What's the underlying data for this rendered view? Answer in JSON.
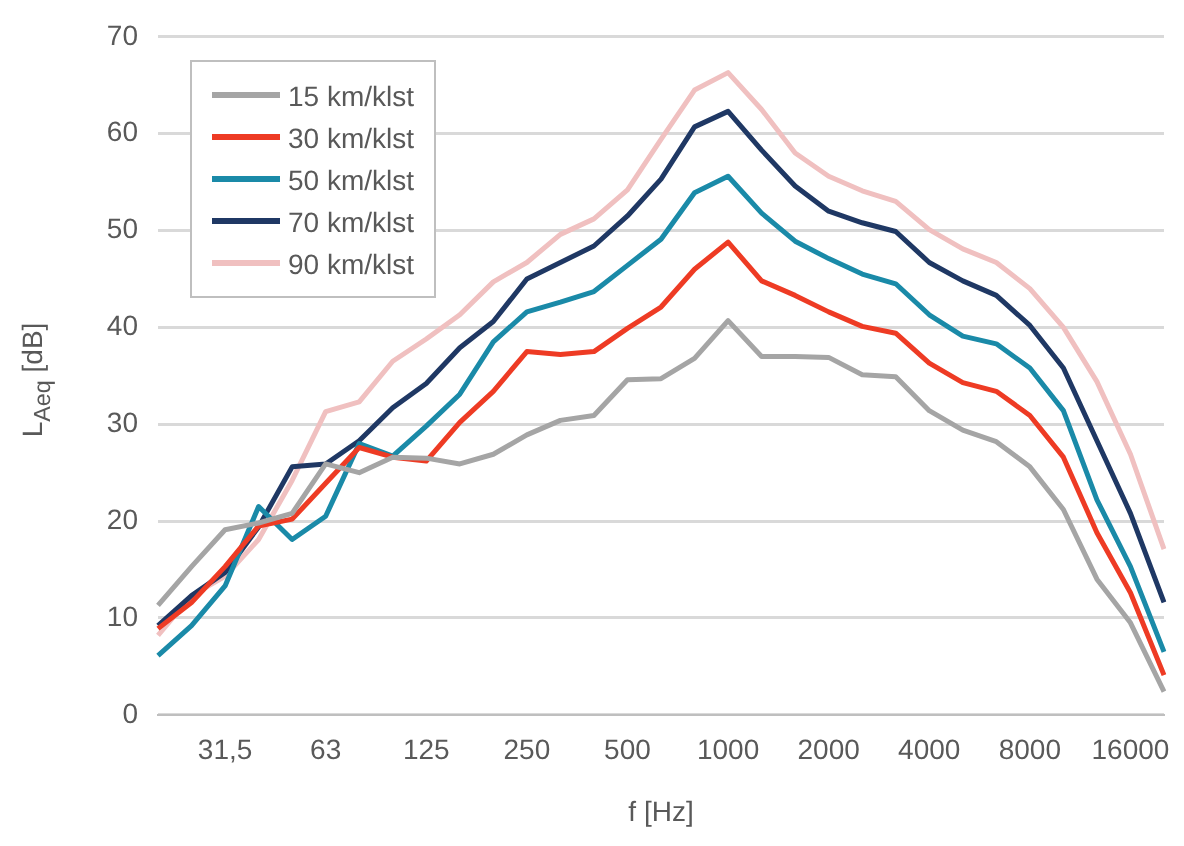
{
  "chart_data": {
    "type": "line",
    "xlabel": "f [Hz]",
    "ylabel": "L$_{Aeq}$ [dB]",
    "categories": [
      null,
      null,
      "31,5",
      null,
      null,
      "63",
      null,
      null,
      "125",
      null,
      null,
      "250",
      null,
      null,
      "500",
      null,
      null,
      "1000",
      null,
      null,
      "2000",
      null,
      null,
      "4000",
      null,
      null,
      "8000",
      null,
      null,
      "16000",
      null
    ],
    "series": [
      {
        "name": "15 km/klst",
        "color": "#a5a5a5",
        "values": [
          11.3,
          15.3,
          19.1,
          19.8,
          20.8,
          25.9,
          25.0,
          26.6,
          26.5,
          25.9,
          26.9,
          28.9,
          30.4,
          30.9,
          34.6,
          34.7,
          36.8,
          40.7,
          37.0,
          37.0,
          36.9,
          35.1,
          34.9,
          31.4,
          29.4,
          28.2,
          25.6,
          21.2,
          14.0,
          9.5,
          2.4
        ]
      },
      {
        "name": "30 km/klst",
        "color": "#ee3b24",
        "values": [
          8.9,
          11.6,
          15.3,
          19.5,
          20.2,
          23.9,
          27.6,
          26.6,
          26.2,
          30.2,
          33.4,
          37.5,
          37.2,
          37.5,
          39.9,
          42.1,
          46.0,
          48.8,
          44.8,
          43.3,
          41.6,
          40.1,
          39.4,
          36.3,
          34.3,
          33.4,
          30.9,
          26.6,
          18.8,
          12.6,
          4.1
        ]
      },
      {
        "name": "50 km/klst",
        "color": "#1a8aa8",
        "values": [
          6.1,
          9.2,
          13.3,
          21.5,
          18.1,
          20.5,
          28.0,
          26.7,
          29.8,
          33.1,
          38.5,
          41.6,
          42.6,
          43.7,
          46.4,
          49.1,
          53.9,
          55.6,
          51.8,
          48.9,
          47.1,
          45.5,
          44.5,
          41.3,
          39.1,
          38.3,
          35.8,
          31.4,
          22.2,
          15.3,
          6.5
        ]
      },
      {
        "name": "70 km/klst",
        "color": "#1f3864",
        "values": [
          9.2,
          12.3,
          14.7,
          19.4,
          25.6,
          25.9,
          28.3,
          31.7,
          34.2,
          37.9,
          40.6,
          45.0,
          46.7,
          48.4,
          51.5,
          55.3,
          60.7,
          62.3,
          58.3,
          54.6,
          52.0,
          50.8,
          49.9,
          46.7,
          44.8,
          43.3,
          40.2,
          35.8,
          28.3,
          20.8,
          11.6
        ]
      },
      {
        "name": "90 km/klst",
        "color": "#f0c0c0",
        "values": [
          8.2,
          12.3,
          14.3,
          18.1,
          24.2,
          31.3,
          32.3,
          36.5,
          38.8,
          41.3,
          44.7,
          46.7,
          49.6,
          51.2,
          54.2,
          59.4,
          64.5,
          66.3,
          62.5,
          58.0,
          55.6,
          54.1,
          53.0,
          50.1,
          48.1,
          46.7,
          44.0,
          40.0,
          34.4,
          26.9,
          17.1
        ]
      }
    ],
    "ylim": [
      0,
      70
    ],
    "yticks": [
      0,
      10,
      20,
      30,
      40,
      50,
      60,
      70
    ],
    "grid": "y",
    "legend": "top left",
    "marker": "none",
    "line_style": "solid"
  }
}
